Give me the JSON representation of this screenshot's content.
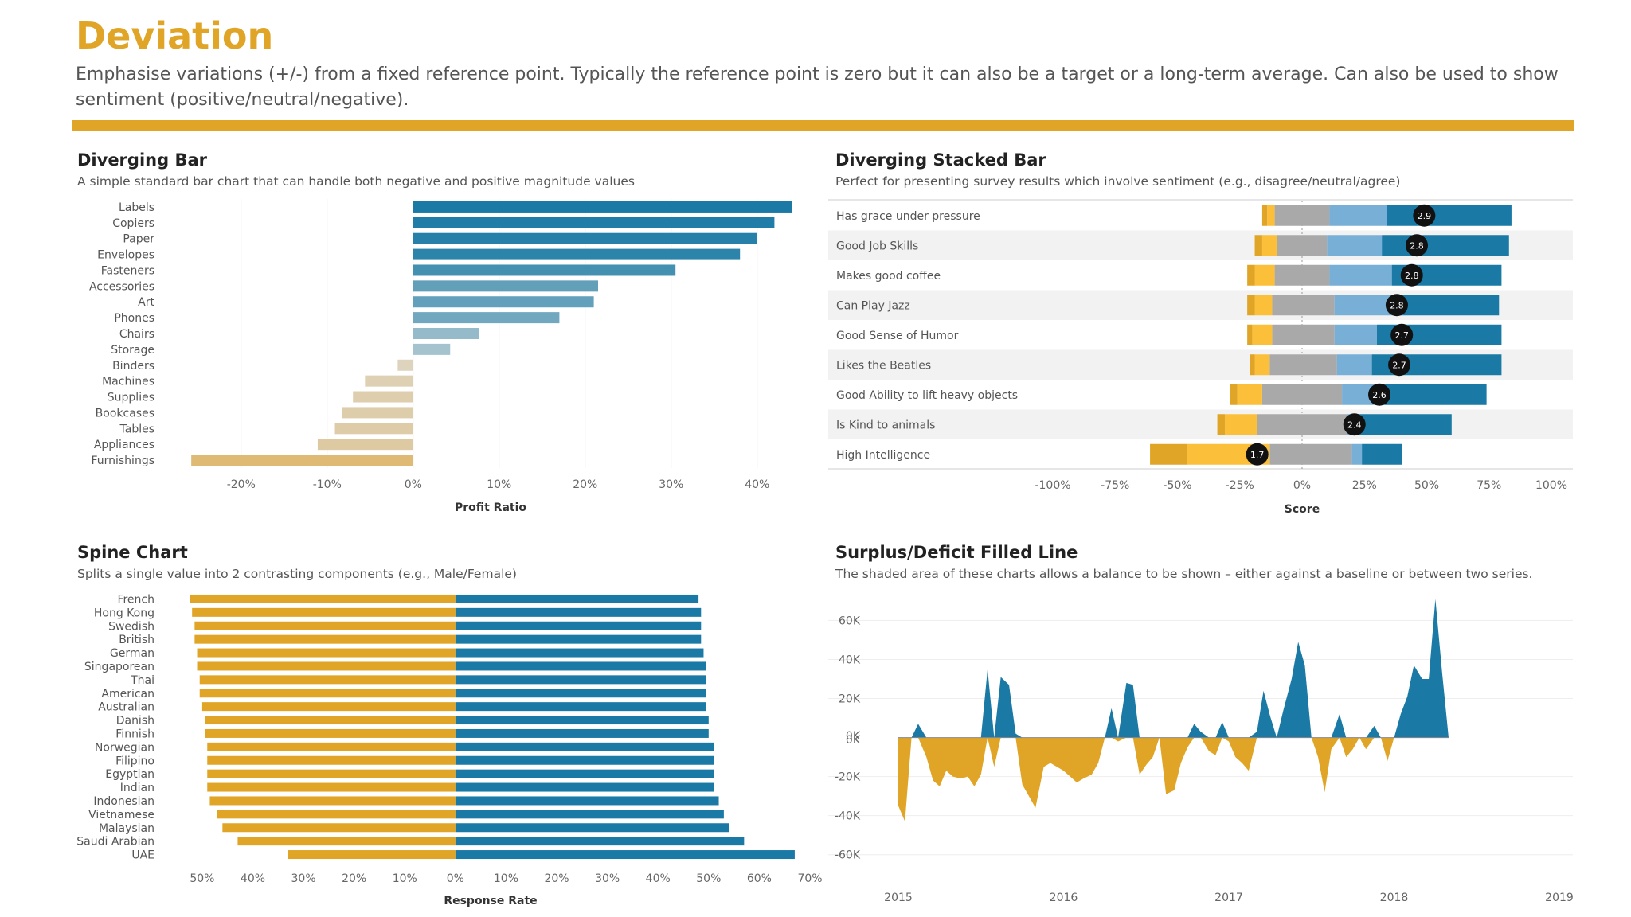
{
  "header": {
    "title": "Deviation",
    "description": "Emphasise variations (+/-) from a fixed reference point. Typically the reference point is zero but it can also be a target or a long-term average. Can also be used to show sentiment (positive/neutral/negative).",
    "accent_color": "#E0A526"
  },
  "panels": {
    "diverging_bar": {
      "title": "Diverging Bar",
      "subtitle": "A simple standard bar chart that can handle both negative and positive magnitude values"
    },
    "stacked_bar": {
      "title": "Diverging Stacked Bar",
      "subtitle": "Perfect for presenting survey results which involve sentiment (e.g., disagree/neutral/agree)"
    },
    "spine": {
      "title": "Spine Chart",
      "subtitle": "Splits a single value into 2 contrasting components (e.g., Male/Female)"
    },
    "filled_line": {
      "title": "Surplus/Deficit Filled Line",
      "subtitle": "The shaded area of these charts allows a balance to be shown – either against a baseline or between two series."
    }
  },
  "chart_data": [
    {
      "id": "diverging_bar",
      "type": "bar",
      "orientation": "horizontal",
      "categories": [
        "Labels",
        "Copiers",
        "Paper",
        "Envelopes",
        "Fasteners",
        "Accessories",
        "Art",
        "Phones",
        "Chairs",
        "Storage",
        "Binders",
        "Machines",
        "Supplies",
        "Bookcases",
        "Tables",
        "Appliances",
        "Furnishings"
      ],
      "values": [
        44,
        42,
        40,
        38,
        30.5,
        21.5,
        21,
        17,
        7.7,
        4.3,
        -1.8,
        -5.6,
        -7,
        -8.3,
        -9.1,
        -11.1,
        -25.8
      ],
      "xlabel": "Profit Ratio",
      "xlim": [
        -26,
        44
      ],
      "xticks": [
        "-20%",
        "-10%",
        "0%",
        "10%",
        "20%",
        "30%",
        "40%"
      ],
      "xtick_values": [
        -20,
        -10,
        0,
        10,
        20,
        30,
        40
      ],
      "grid": true
    },
    {
      "id": "stacked_bar",
      "type": "bar",
      "orientation": "horizontal-stacked",
      "categories": [
        "Has grace under pressure",
        "Good Job Skills",
        "Makes good coffee",
        "Can Play Jazz",
        "Good Sense of Humor",
        "Likes the Beatles",
        "Good Ability to lift heavy objects",
        "Is Kind to animals",
        "High Intelligence"
      ],
      "series": [
        {
          "values": [
            -2,
            -3,
            -3,
            -3,
            -2,
            -2,
            -3,
            -3,
            -15
          ],
          "color": "#E0A526"
        },
        {
          "values": [
            -3,
            -6,
            -8,
            -7,
            -8,
            -6,
            -10,
            -13,
            -33
          ],
          "color": "#FBBF3A"
        },
        {
          "values": [
            -11,
            -10,
            -11,
            -12,
            -12,
            -13,
            -16,
            -18,
            -13
          ],
          "color": "#A9A9A9"
        },
        {
          "values": [
            11,
            10,
            11,
            13,
            13,
            14,
            16,
            18,
            20
          ],
          "color": "#A9A9A9"
        },
        {
          "values": [
            23,
            22,
            25,
            25,
            17,
            14,
            16,
            2,
            4
          ],
          "color": "#78AFD6"
        },
        {
          "values": [
            50,
            51,
            44,
            41,
            50,
            52,
            42,
            40,
            16
          ],
          "color": "#1A7AA5"
        }
      ],
      "scores": [
        "2.9",
        "2.8",
        "2.8",
        "2.8",
        "2.7",
        "2.7",
        "2.6",
        "2.4",
        "1.7"
      ],
      "score_positions": [
        49,
        46,
        44,
        38,
        40,
        39,
        31,
        21,
        -18
      ],
      "xlabel": "Score",
      "xlim": [
        -100,
        100
      ],
      "xticks": [
        "-100%",
        "-75%",
        "-50%",
        "-25%",
        "0%",
        "25%",
        "50%",
        "75%",
        "100%"
      ],
      "xtick_values": [
        -100,
        -75,
        -50,
        -25,
        0,
        25,
        50,
        75,
        100
      ]
    },
    {
      "id": "spine",
      "type": "bar",
      "orientation": "horizontal-spine",
      "categories": [
        "French",
        "Hong Kong",
        "Swedish",
        "British",
        "German",
        "Singaporean",
        "Thai",
        "American",
        "Australian",
        "Danish",
        "Finnish",
        "Norwegian",
        "Filipino",
        "Egyptian",
        "Indian",
        "Indonesian",
        "Vietnamese",
        "Malaysian",
        "Saudi Arabian",
        "UAE"
      ],
      "series": [
        {
          "values": [
            52.5,
            52,
            51.5,
            51.5,
            51,
            51,
            50.5,
            50.5,
            50,
            49.5,
            49.5,
            49,
            49,
            49,
            49,
            48.5,
            47,
            46,
            43,
            33
          ],
          "color": "#E0A526"
        },
        {
          "values": [
            48,
            48.5,
            48.5,
            48.5,
            49,
            49.5,
            49.5,
            49.5,
            49.5,
            50,
            50,
            51,
            51,
            51,
            51,
            52,
            53,
            54,
            57,
            67
          ],
          "color": "#1A7AA5"
        }
      ],
      "xlabel": "Response Rate",
      "xlim": [
        -52.5,
        70
      ],
      "xticks": [
        "50%",
        "40%",
        "30%",
        "20%",
        "10%",
        "0%",
        "10%",
        "20%",
        "30%",
        "40%",
        "50%",
        "60%",
        "70%"
      ],
      "xtick_values": [
        -50,
        -40,
        -30,
        -20,
        -10,
        0,
        10,
        20,
        30,
        40,
        50,
        60,
        70
      ]
    },
    {
      "id": "filled_line",
      "type": "area",
      "x": [
        2015.0,
        2015.04,
        2015.08,
        2015.12,
        2015.17,
        2015.21,
        2015.25,
        2015.29,
        2015.33,
        2015.38,
        2015.42,
        2015.46,
        2015.5,
        2015.54,
        2015.58,
        2015.62,
        2015.67,
        2015.71,
        2015.75,
        2015.79,
        2015.83,
        2015.88,
        2015.92,
        2015.96,
        2016.0,
        2016.04,
        2016.08,
        2016.12,
        2016.17,
        2016.21,
        2016.25,
        2016.29,
        2016.33,
        2016.38,
        2016.42,
        2016.46,
        2016.5,
        2016.54,
        2016.58,
        2016.62,
        2016.67,
        2016.71,
        2016.75,
        2016.79,
        2016.83,
        2016.88,
        2016.92,
        2016.96,
        2017.0,
        2017.04,
        2017.08,
        2017.12,
        2017.17,
        2017.21,
        2017.25,
        2017.29,
        2017.33,
        2017.38,
        2017.42,
        2017.46,
        2017.5,
        2017.54,
        2017.58,
        2017.62,
        2017.67,
        2017.71,
        2017.75,
        2017.79,
        2017.83,
        2017.88,
        2017.92,
        2017.96,
        2018.0,
        2018.04,
        2018.08,
        2018.12,
        2018.17,
        2018.21,
        2018.25,
        2018.29,
        2018.33,
        2018.38,
        2018.42,
        2018.46,
        2018.5,
        2018.54,
        2018.58,
        2018.62,
        2018.67,
        2018.71,
        2018.75,
        2018.79,
        2018.83,
        2018.88,
        2018.92,
        2018.96
      ],
      "y": [
        -35000,
        -43000,
        0,
        7000,
        -10000,
        -22000,
        -25000,
        -17000,
        -20000,
        -21000,
        -20000,
        -25000,
        -19000,
        35000,
        -15000,
        31000,
        27000,
        2000,
        -24000,
        -30000,
        -36000,
        -15000,
        -13000,
        -15000,
        -17000,
        -20000,
        -23000,
        -21000,
        -19000,
        -13000,
        0,
        15000,
        -2000,
        28000,
        27000,
        -19000,
        -14000,
        -10000,
        0,
        -29000,
        -27000,
        -13000,
        -5000,
        7000,
        3000,
        -7000,
        -9000,
        8000,
        -2000,
        -10000,
        -13000,
        -17000,
        3000,
        24000,
        11000,
        0,
        14000,
        30000,
        49000,
        37000,
        0,
        -10000,
        -28000,
        -6000,
        12000,
        -10000,
        -6000,
        0,
        -6000,
        6000,
        0,
        -12000,
        0,
        12000,
        21000,
        37000,
        30000,
        30000,
        71000,
        34000,
        0,
        0,
        0,
        0,
        0,
        0,
        0,
        0,
        0,
        0,
        0,
        0,
        0,
        0,
        0,
        0
      ],
      "ylim": [
        -65000,
        72000
      ],
      "yticks": [
        "60K",
        "40K",
        "20K",
        "0K",
        "0K",
        "-20K",
        "-40K",
        "-60K"
      ],
      "ytick_values": [
        60000,
        40000,
        20000,
        1000,
        -1000,
        -20000,
        -40000,
        -60000
      ],
      "xticks": [
        "2015",
        "2016",
        "2017",
        "2018",
        "2019"
      ],
      "xtick_values": [
        2015,
        2016,
        2017,
        2018,
        2019
      ],
      "positive_color": "#1A7AA5",
      "negative_color": "#E0A526"
    }
  ]
}
